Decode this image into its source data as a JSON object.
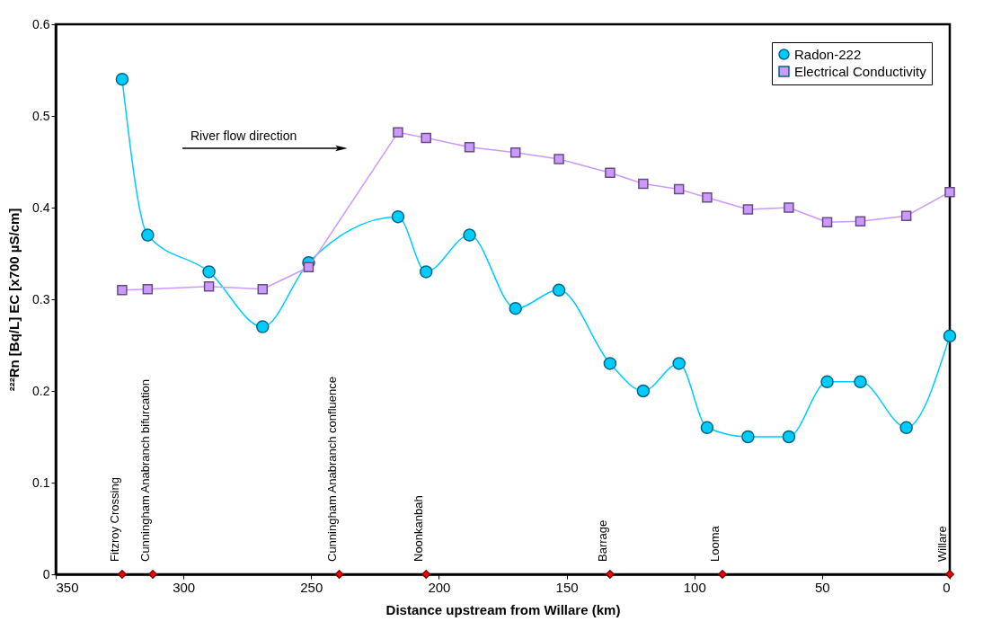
{
  "chart_data": {
    "type": "line",
    "xlabel": "Distance upstream from Willare (km)",
    "ylabel": "²²²Rn [Bq/L]    EC [x700 µS/cm]",
    "xlim": [
      350,
      0
    ],
    "xticks": [
      350,
      300,
      250,
      200,
      150,
      100,
      50,
      0
    ],
    "ylim": [
      0,
      0.6
    ],
    "yticks": [
      0,
      0.1,
      0.2,
      0.3,
      0.4,
      0.5,
      0.6
    ],
    "legend": "top right",
    "grid": false,
    "annotations": [
      "River flow direction"
    ],
    "series": [
      {
        "name": "Radon-222",
        "marker": "circle",
        "color": "#00ccff",
        "x": [
          324,
          314,
          290,
          269,
          251,
          216,
          205,
          188,
          170,
          153,
          133,
          120,
          106,
          95,
          79,
          63,
          48,
          35,
          17,
          0
        ],
        "values": [
          0.54,
          0.37,
          0.33,
          0.27,
          0.34,
          0.39,
          0.33,
          0.37,
          0.29,
          0.31,
          0.23,
          0.2,
          0.23,
          0.16,
          0.15,
          0.15,
          0.21,
          0.21,
          0.16,
          0.26
        ]
      },
      {
        "name": "Electrical Conductivity",
        "marker": "square",
        "color": "#cc99ff",
        "x": [
          324,
          314,
          290,
          269,
          251,
          216,
          205,
          188,
          170,
          153,
          133,
          120,
          106,
          95,
          79,
          63,
          48,
          35,
          17,
          0
        ],
        "values": [
          0.31,
          0.311,
          0.314,
          0.311,
          0.335,
          0.482,
          0.476,
          0.466,
          0.46,
          0.453,
          0.438,
          0.426,
          0.42,
          0.411,
          0.398,
          0.4,
          0.384,
          0.385,
          0.391,
          0.417
        ]
      },
      {
        "type": "scatter",
        "marker": "diamond",
        "color": "#ff0000",
        "x": [
          324,
          312,
          239,
          205,
          133,
          89,
          0
        ],
        "values": [
          0,
          0,
          0,
          0,
          0,
          0,
          0
        ],
        "value_labels": [
          "Fitzroy Crossing",
          "Cunningham Anabranch bifurcation",
          "Cunningham Anabranch confluence",
          "Noonkanbah",
          "Barrage",
          "Looma",
          "Willare"
        ]
      }
    ]
  }
}
